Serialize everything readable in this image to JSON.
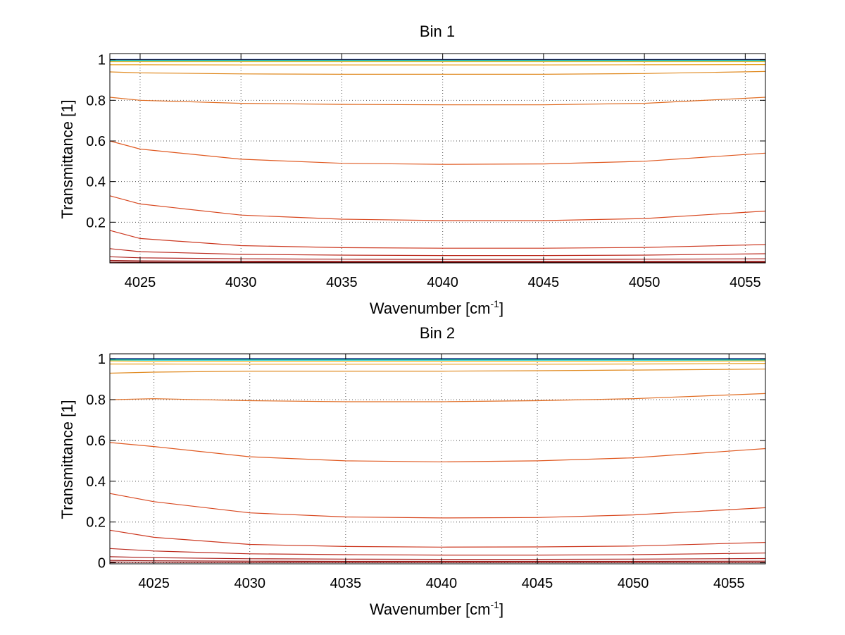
{
  "figure": {
    "background": "#ffffff"
  },
  "chart_data": [
    {
      "type": "line",
      "title": "Bin 1",
      "xlabel": "Wavenumber [cm",
      "xlabel_sup": "-1",
      "xlabel_end": "]",
      "ylabel": "Transmittance [1]",
      "xlim": [
        4023.5,
        4056
      ],
      "ylim": [
        0,
        1.03
      ],
      "xticks": [
        4025,
        4030,
        4035,
        4040,
        4045,
        4050,
        4055
      ],
      "xtick_labels": [
        "4025",
        "4030",
        "4035",
        "4040",
        "4045",
        "4050",
        "4055"
      ],
      "yticks": [
        0.2,
        0.4,
        0.6,
        0.8,
        1
      ],
      "ytick_labels": [
        "0.2",
        "0.4",
        "0.6",
        "0.8",
        "1"
      ],
      "grid": true,
      "x": [
        4023.5,
        4025,
        4030,
        4035,
        4040,
        4045,
        4050,
        4056
      ],
      "series": [
        {
          "color": "#1a56e6",
          "values": [
            1.0,
            1.0,
            1.0,
            1.0,
            1.0,
            1.0,
            1.0,
            1.0
          ]
        },
        {
          "color": "#111111",
          "values": [
            0.998,
            0.998,
            0.998,
            0.998,
            0.998,
            0.998,
            0.998,
            0.998
          ]
        },
        {
          "color": "#22cccc",
          "values": [
            0.995,
            0.995,
            0.995,
            0.995,
            0.995,
            0.995,
            0.995,
            0.995
          ]
        },
        {
          "color": "#f5b820",
          "values": [
            0.99,
            0.99,
            0.99,
            0.99,
            0.99,
            0.99,
            0.99,
            0.99
          ]
        },
        {
          "color": "#e8a020",
          "values": [
            0.975,
            0.975,
            0.974,
            0.974,
            0.974,
            0.974,
            0.975,
            0.976
          ]
        },
        {
          "color": "#e08a20",
          "values": [
            0.94,
            0.935,
            0.93,
            0.928,
            0.928,
            0.928,
            0.932,
            0.942
          ]
        },
        {
          "color": "#e06c22",
          "values": [
            0.815,
            0.8,
            0.785,
            0.78,
            0.778,
            0.778,
            0.785,
            0.815
          ]
        },
        {
          "color": "#e05a22",
          "values": [
            0.6,
            0.56,
            0.51,
            0.49,
            0.485,
            0.487,
            0.5,
            0.54
          ]
        },
        {
          "color": "#d84820",
          "values": [
            0.33,
            0.29,
            0.235,
            0.215,
            0.208,
            0.208,
            0.218,
            0.255
          ]
        },
        {
          "color": "#cc3820",
          "values": [
            0.16,
            0.12,
            0.085,
            0.075,
            0.072,
            0.072,
            0.076,
            0.09
          ]
        },
        {
          "color": "#bb2a1e",
          "values": [
            0.07,
            0.055,
            0.042,
            0.038,
            0.036,
            0.036,
            0.038,
            0.045
          ]
        },
        {
          "color": "#aa1e1a",
          "values": [
            0.03,
            0.025,
            0.02,
            0.018,
            0.017,
            0.017,
            0.018,
            0.02
          ]
        },
        {
          "color": "#981412",
          "values": [
            0.012,
            0.01,
            0.008,
            0.007,
            0.007,
            0.007,
            0.007,
            0.008
          ]
        },
        {
          "color": "#880c0c",
          "values": [
            0.004,
            0.003,
            0.002,
            0.002,
            0.002,
            0.002,
            0.002,
            0.002
          ]
        }
      ]
    },
    {
      "type": "line",
      "title": "Bin 2",
      "xlabel": "Wavenumber [cm",
      "xlabel_sup": "-1",
      "xlabel_end": "]",
      "ylabel": "Transmittance [1]",
      "xlim": [
        4022.7,
        4056.9
      ],
      "ylim": [
        -0.005,
        1.025
      ],
      "xticks": [
        4025,
        4030,
        4035,
        4040,
        4045,
        4050,
        4055
      ],
      "xtick_labels": [
        "4025",
        "4030",
        "4035",
        "4040",
        "4045",
        "4050",
        "4055"
      ],
      "yticks": [
        0,
        0.2,
        0.4,
        0.6,
        0.8,
        1
      ],
      "ytick_labels": [
        "0",
        "0.2",
        "0.4",
        "0.6",
        "0.8",
        "1"
      ],
      "grid": true,
      "x": [
        4022.7,
        4025,
        4030,
        4035,
        4040,
        4045,
        4050,
        4056.9
      ],
      "series": [
        {
          "color": "#1a56e6",
          "values": [
            1.0,
            1.0,
            1.0,
            1.0,
            1.0,
            1.0,
            1.0,
            1.0
          ]
        },
        {
          "color": "#111111",
          "values": [
            0.998,
            0.998,
            0.998,
            0.998,
            0.998,
            0.998,
            0.998,
            0.998
          ]
        },
        {
          "color": "#22cccc",
          "values": [
            0.995,
            0.995,
            0.995,
            0.995,
            0.995,
            0.995,
            0.995,
            0.995
          ]
        },
        {
          "color": "#f5b820",
          "values": [
            0.99,
            0.988,
            0.988,
            0.988,
            0.988,
            0.988,
            0.988,
            0.99
          ]
        },
        {
          "color": "#e8a020",
          "values": [
            0.975,
            0.975,
            0.974,
            0.974,
            0.974,
            0.974,
            0.975,
            0.978
          ]
        },
        {
          "color": "#e08a20",
          "values": [
            0.93,
            0.935,
            0.94,
            0.94,
            0.94,
            0.942,
            0.945,
            0.95
          ]
        },
        {
          "color": "#e06c22",
          "values": [
            0.8,
            0.805,
            0.795,
            0.79,
            0.79,
            0.795,
            0.805,
            0.83
          ]
        },
        {
          "color": "#e05a22",
          "values": [
            0.59,
            0.57,
            0.52,
            0.5,
            0.495,
            0.5,
            0.515,
            0.56
          ]
        },
        {
          "color": "#d84820",
          "values": [
            0.34,
            0.3,
            0.245,
            0.225,
            0.22,
            0.222,
            0.235,
            0.27
          ]
        },
        {
          "color": "#cc3820",
          "values": [
            0.16,
            0.125,
            0.09,
            0.08,
            0.077,
            0.078,
            0.082,
            0.1
          ]
        },
        {
          "color": "#bb2a1e",
          "values": [
            0.07,
            0.058,
            0.044,
            0.04,
            0.038,
            0.038,
            0.04,
            0.048
          ]
        },
        {
          "color": "#aa1e1a",
          "values": [
            0.03,
            0.025,
            0.02,
            0.018,
            0.017,
            0.017,
            0.018,
            0.021
          ]
        },
        {
          "color": "#981412",
          "values": [
            0.012,
            0.01,
            0.008,
            0.007,
            0.007,
            0.007,
            0.007,
            0.008
          ]
        },
        {
          "color": "#880c0c",
          "values": [
            0.004,
            0.003,
            0.002,
            0.002,
            0.002,
            0.002,
            0.002,
            0.002
          ]
        }
      ]
    }
  ]
}
